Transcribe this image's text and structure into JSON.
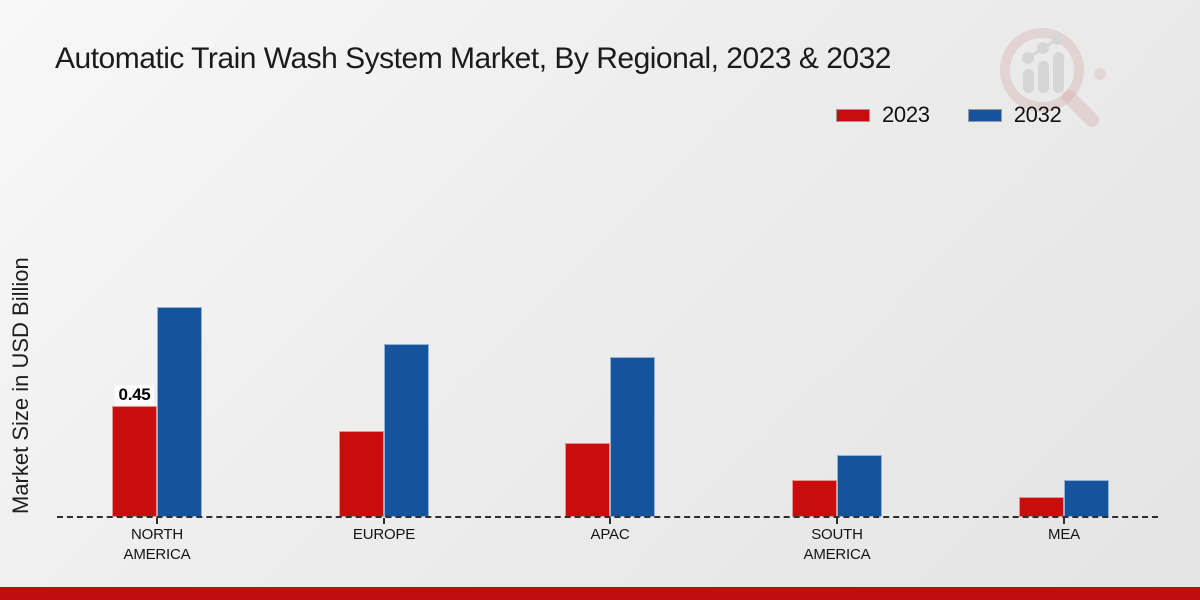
{
  "title": "Automatic Train Wash System Market, By Regional, 2023 & 2032",
  "ylabel": "Market Size in USD Billion",
  "colors": {
    "series_2023": "#C90D0D",
    "series_2032": "#14549C",
    "footer_strip": "#C00D0D",
    "axis": "#2E2E2E",
    "background": "#ECECEC"
  },
  "legend": {
    "position": "top-right",
    "items": [
      {
        "label": "2023",
        "color": "#C90D0D"
      },
      {
        "label": "2032",
        "color": "#14549C"
      }
    ]
  },
  "chart_data": {
    "type": "bar",
    "title": "Automatic Train Wash System Market, By Regional, 2023 & 2032",
    "xlabel": "",
    "ylabel": "Market Size in USD Billion",
    "categories": [
      "NORTH AMERICA",
      "EUROPE",
      "APAC",
      "SOUTH AMERICA",
      "MEA"
    ],
    "series": [
      {
        "name": "2023",
        "color": "#C90D0D",
        "values": [
          0.45,
          0.35,
          0.3,
          0.15,
          0.08
        ],
        "data_labels": [
          "0.45",
          "",
          "",
          "",
          ""
        ]
      },
      {
        "name": "2032",
        "color": "#14549C",
        "values": [
          0.85,
          0.7,
          0.65,
          0.25,
          0.15
        ],
        "data_labels": [
          "",
          "",
          "",
          "",
          ""
        ]
      }
    ],
    "ylim": [
      0,
      1.0
    ],
    "grid": false,
    "baseline_style": "dashed",
    "legend_position": "top-right"
  },
  "watermark": {
    "name": "market-research-magnifier-logo"
  }
}
